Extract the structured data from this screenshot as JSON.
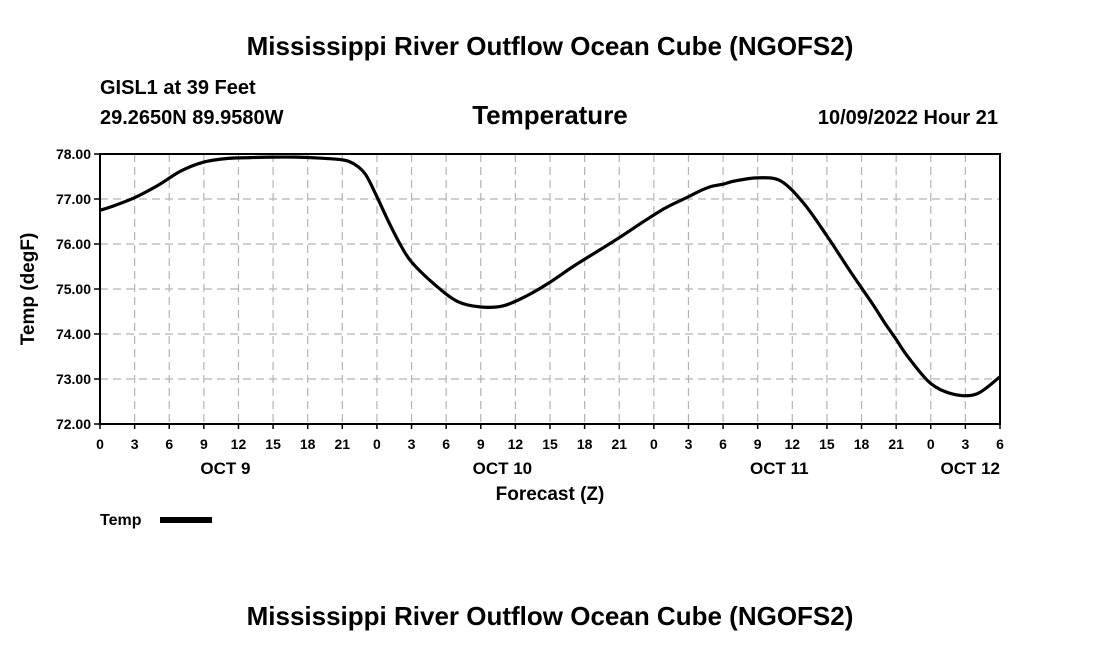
{
  "page": {
    "title": "Mississippi River Outflow Ocean Cube (NGOFS2)",
    "footer_title": "Mississippi River Outflow Ocean Cube (NGOFS2)"
  },
  "station": {
    "name_line": "GISL1 at 39 Feet",
    "coords_line": "29.2650N  89.9580W",
    "datetime_line": "10/09/2022 Hour 21"
  },
  "chart_data": {
    "type": "line",
    "title": "Temperature",
    "xlabel": "Forecast (Z)",
    "ylabel": "Temp (degF)",
    "ylim": [
      72.0,
      78.0
    ],
    "y_ticks": [
      "72.00",
      "73.00",
      "74.00",
      "75.00",
      "76.00",
      "77.00",
      "78.00"
    ],
    "xlim_hours": [
      0,
      78
    ],
    "x_ticks": [
      "0",
      "3",
      "6",
      "9",
      "12",
      "15",
      "18",
      "21",
      "0",
      "3",
      "6",
      "9",
      "12",
      "15",
      "18",
      "21",
      "0",
      "3",
      "6",
      "9",
      "12",
      "15",
      "18",
      "21",
      "0",
      "3",
      "6"
    ],
    "day_labels": [
      {
        "label": "OCT 9",
        "hour": 12
      },
      {
        "label": "OCT 10",
        "hour": 36
      },
      {
        "label": "OCT 11",
        "hour": 60
      },
      {
        "label": "OCT 12",
        "hour": 78
      }
    ],
    "grid": true,
    "legend": {
      "position": "bottom-left",
      "entries": [
        "Temp"
      ]
    },
    "series": [
      {
        "name": "Temp",
        "color": "#000000",
        "x_hours": [
          0,
          1,
          3,
          5,
          7,
          9,
          11,
          13,
          15,
          17,
          19,
          21,
          22,
          23,
          24,
          25,
          26,
          27,
          29,
          31,
          33,
          35,
          37,
          39,
          41,
          43,
          45,
          47,
          49,
          51,
          52,
          53,
          54,
          55,
          57,
          59,
          61,
          63,
          65,
          67,
          68,
          69,
          70,
          72,
          74,
          76,
          78
        ],
        "values": [
          76.75,
          76.83,
          77.03,
          77.3,
          77.62,
          77.82,
          77.9,
          77.92,
          77.93,
          77.93,
          77.91,
          77.87,
          77.78,
          77.55,
          77.05,
          76.5,
          76.0,
          75.6,
          75.1,
          74.72,
          74.6,
          74.63,
          74.85,
          75.15,
          75.5,
          75.82,
          76.14,
          76.48,
          76.8,
          77.05,
          77.18,
          77.28,
          77.33,
          77.4,
          77.47,
          77.4,
          76.9,
          76.18,
          75.4,
          74.65,
          74.25,
          73.88,
          73.5,
          72.9,
          72.66,
          72.67,
          73.05
        ]
      }
    ]
  }
}
